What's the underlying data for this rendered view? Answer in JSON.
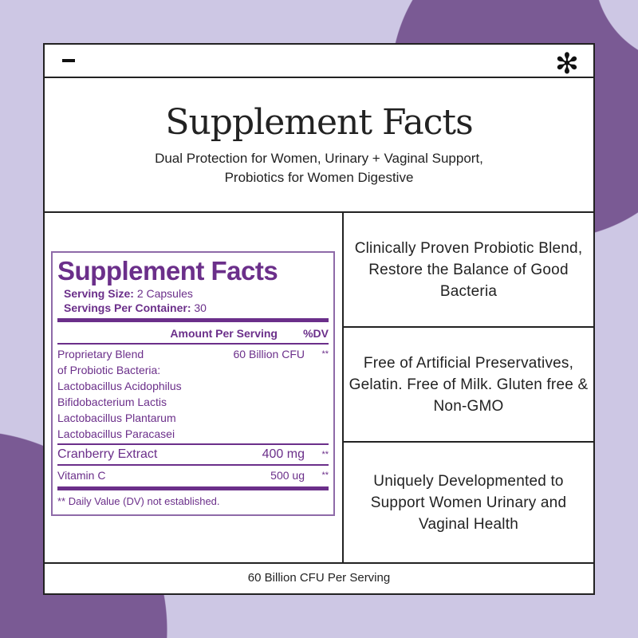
{
  "colors": {
    "background": "#cdc7e4",
    "accent_circle": "#7a5a94",
    "label_purple": "#6b2f8a"
  },
  "header": {
    "left_icon": "minus-icon",
    "right_icon": "asterisk-icon",
    "right_glyph": "✻"
  },
  "title": "Supplement Facts",
  "subtitle": "Dual Protection for Women, Urinary + Vaginal Support, Probiotics for Women Digestive",
  "label": {
    "title": "Supplement Facts",
    "serving_size_label": "Serving Size:",
    "serving_size": "2 Capsules",
    "servings_label": "Servings Per Container:",
    "servings": "30",
    "col_amount": "Amount Per Serving",
    "col_dv": "%DV",
    "blend": {
      "lines": [
        "Proprietary Blend",
        "of Probiotic Bacteria:",
        "Lactobacillus Acidophilus",
        "Bifidobacterium Lactis",
        "Lactobacillus Plantarum",
        "Lactobacillus Paracasei"
      ],
      "amount": "60 Billion CFU",
      "dv": "**"
    },
    "items": [
      {
        "name": "Cranberry Extract",
        "amount": "400 mg",
        "dv": "**"
      },
      {
        "name": "Vitamin C",
        "amount": "500 ug",
        "dv": "**"
      }
    ],
    "footnote": "** Daily Value (DV) not established."
  },
  "features": [
    "Clinically Proven Probiotic Blend, Restore the Balance of Good Bacteria",
    "Free of Artificial Preservatives, Gelatin. Free of Milk. Gluten free & Non-GMO",
    "Uniquely Developmented to Support Women Urinary and Vaginal Health"
  ],
  "footer": "60 Billion CFU Per Serving"
}
